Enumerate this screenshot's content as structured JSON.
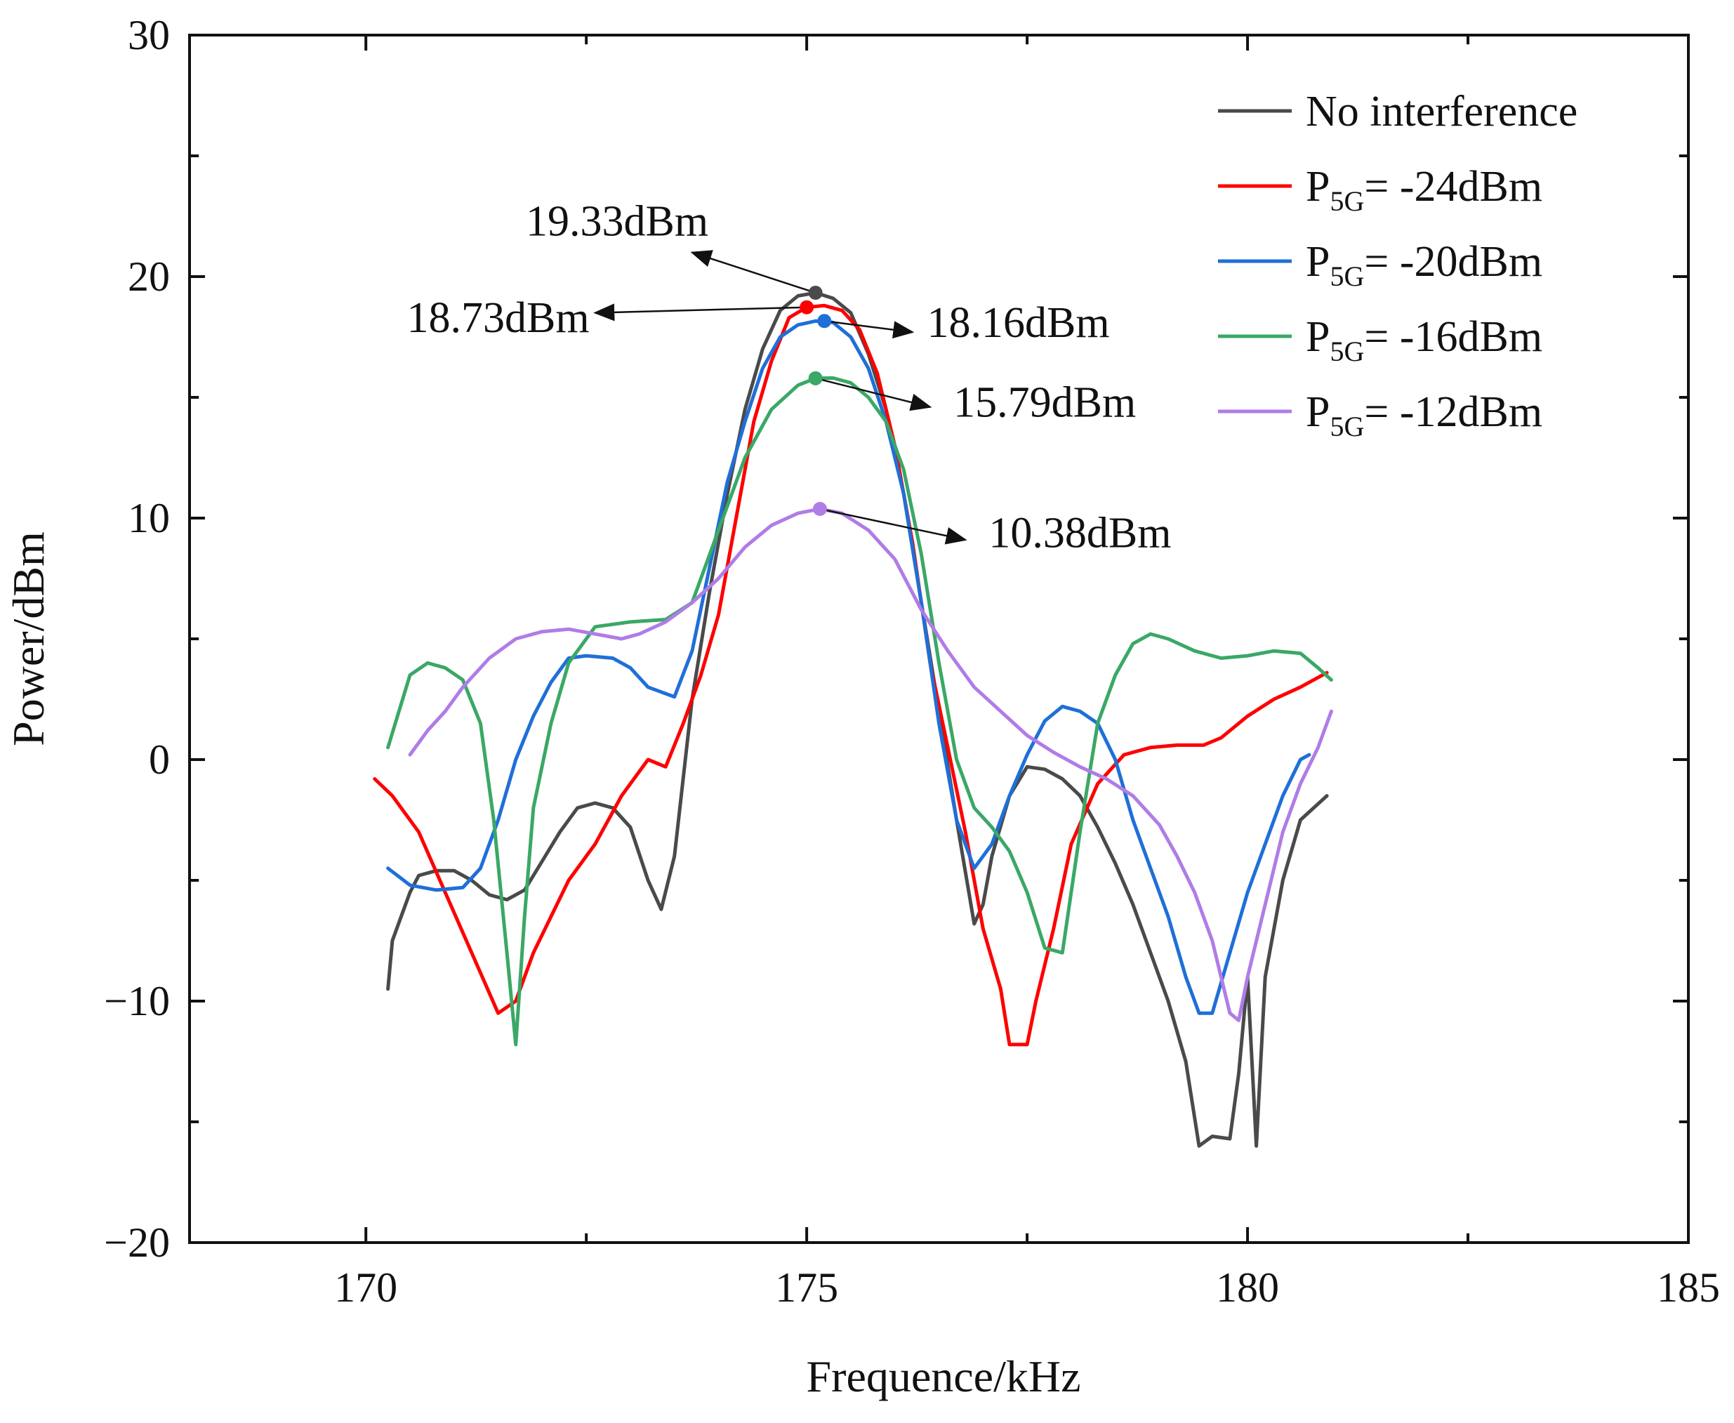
{
  "chart_data": {
    "type": "line",
    "xlabel": "Frequence/kHz",
    "ylabel": "Power/dBm",
    "xlim": [
      168,
      185
    ],
    "ylim": [
      -20,
      30
    ],
    "xticks": [
      170,
      175,
      180,
      185
    ],
    "yticks": [
      -20,
      -10,
      0,
      10,
      20,
      30
    ],
    "xtick_labels": [
      "170",
      "175",
      "180",
      "185"
    ],
    "ytick_labels": [
      "−20",
      "−10",
      "0",
      "10",
      "20",
      "30"
    ],
    "grid": false,
    "legend_position": "top-right",
    "series": [
      {
        "name": "No interference",
        "legend_main": "No interference",
        "legend_sub": "",
        "legend_tail": "",
        "color": "#4a4a4a",
        "x": [
          170.25,
          170.3,
          170.4,
          170.5,
          170.6,
          170.8,
          171.0,
          171.2,
          171.4,
          171.6,
          171.8,
          172.0,
          172.2,
          172.4,
          172.6,
          172.8,
          173.0,
          173.2,
          173.35,
          173.5,
          173.7,
          173.9,
          174.1,
          174.3,
          174.5,
          174.7,
          174.9,
          175.1,
          175.3,
          175.5,
          175.7,
          175.9,
          176.1,
          176.3,
          176.5,
          176.7,
          176.9,
          177.0,
          177.1,
          177.3,
          177.5,
          177.7,
          177.9,
          178.1,
          178.3,
          178.5,
          178.7,
          178.9,
          179.1,
          179.3,
          179.45,
          179.6,
          179.8,
          179.9,
          180.0,
          180.1,
          180.2,
          180.4,
          180.6,
          180.9
        ],
        "y": [
          -9.5,
          -7.5,
          -6.5,
          -5.5,
          -4.8,
          -4.6,
          -4.6,
          -5.0,
          -5.6,
          -5.8,
          -5.4,
          -4.2,
          -3.0,
          -2.0,
          -1.8,
          -2.0,
          -2.8,
          -5.0,
          -6.2,
          -4.0,
          2.5,
          7.0,
          11.0,
          14.5,
          17.0,
          18.6,
          19.2,
          19.33,
          19.1,
          18.5,
          16.8,
          14.5,
          11.0,
          6.5,
          2.0,
          -2.5,
          -6.8,
          -6.0,
          -4.0,
          -1.5,
          -0.3,
          -0.4,
          -0.8,
          -1.5,
          -2.8,
          -4.3,
          -6.0,
          -8.0,
          -10.0,
          -12.5,
          -16.0,
          -15.6,
          -15.7,
          -13.0,
          -9.0,
          -16.0,
          -9.0,
          -5.0,
          -2.5,
          -1.5
        ]
      },
      {
        "name": "P5G= -24dBm",
        "legend_main": "P",
        "legend_sub": "5G",
        "legend_tail": "= -24dBm",
        "color": "#ff0000",
        "x": [
          170.1,
          170.3,
          170.6,
          170.9,
          171.2,
          171.5,
          171.7,
          171.9,
          172.1,
          172.3,
          172.6,
          172.9,
          173.2,
          173.4,
          173.6,
          173.8,
          174.0,
          174.2,
          174.4,
          174.6,
          174.8,
          175.0,
          175.2,
          175.4,
          175.6,
          175.8,
          176.0,
          176.2,
          176.4,
          176.6,
          176.8,
          177.0,
          177.2,
          177.3,
          177.5,
          177.6,
          177.8,
          178.0,
          178.3,
          178.6,
          178.9,
          179.2,
          179.5,
          179.7,
          180.0,
          180.3,
          180.6,
          180.9
        ],
        "y": [
          -0.8,
          -1.5,
          -3.0,
          -5.5,
          -8.0,
          -10.5,
          -10.0,
          -8.0,
          -6.5,
          -5.0,
          -3.5,
          -1.5,
          0.0,
          -0.3,
          1.5,
          3.5,
          6.0,
          10.0,
          14.0,
          16.5,
          18.3,
          18.73,
          18.8,
          18.6,
          17.8,
          16.0,
          13.0,
          9.0,
          4.0,
          0.5,
          -3.0,
          -7.0,
          -9.5,
          -11.8,
          -11.8,
          -10.0,
          -7.0,
          -3.5,
          -1.0,
          0.2,
          0.5,
          0.6,
          0.6,
          0.9,
          1.8,
          2.5,
          3.0,
          3.6
        ]
      },
      {
        "name": "P5G= -20dBm",
        "legend_main": "P",
        "legend_sub": "5G",
        "legend_tail": "= -20dBm",
        "color": "#1f6fd8",
        "x": [
          170.25,
          170.5,
          170.8,
          171.1,
          171.3,
          171.5,
          171.7,
          171.9,
          172.1,
          172.3,
          172.5,
          172.8,
          173.0,
          173.2,
          173.5,
          173.7,
          173.9,
          174.1,
          174.3,
          174.5,
          174.7,
          174.9,
          175.1,
          175.3,
          175.5,
          175.7,
          175.9,
          176.1,
          176.3,
          176.5,
          176.7,
          176.9,
          177.1,
          177.3,
          177.5,
          177.7,
          177.9,
          178.1,
          178.3,
          178.5,
          178.7,
          178.9,
          179.1,
          179.3,
          179.45,
          179.6,
          179.8,
          180.0,
          180.2,
          180.4,
          180.6,
          180.7
        ],
        "y": [
          -4.5,
          -5.2,
          -5.4,
          -5.3,
          -4.5,
          -2.5,
          0.0,
          1.8,
          3.2,
          4.2,
          4.3,
          4.2,
          3.8,
          3.0,
          2.6,
          4.5,
          8.0,
          11.5,
          14.0,
          16.2,
          17.5,
          18.0,
          18.16,
          18.1,
          17.5,
          16.2,
          14.0,
          11.0,
          6.5,
          1.5,
          -2.5,
          -4.5,
          -3.5,
          -1.5,
          0.2,
          1.6,
          2.2,
          2.0,
          1.5,
          0.0,
          -2.5,
          -4.5,
          -6.5,
          -9.0,
          -10.5,
          -10.5,
          -8.0,
          -5.5,
          -3.5,
          -1.5,
          0.0,
          0.2
        ]
      },
      {
        "name": "P5G= -16dBm",
        "legend_main": "P",
        "legend_sub": "5G",
        "legend_tail": "= -16dBm",
        "color": "#3aa866",
        "x": [
          170.25,
          170.5,
          170.7,
          170.9,
          171.1,
          171.3,
          171.45,
          171.6,
          171.7,
          171.8,
          171.9,
          172.1,
          172.3,
          172.6,
          173.0,
          173.4,
          173.7,
          174.0,
          174.3,
          174.6,
          174.9,
          175.1,
          175.3,
          175.5,
          175.7,
          175.9,
          176.1,
          176.3,
          176.5,
          176.7,
          176.9,
          177.1,
          177.3,
          177.5,
          177.7,
          177.9,
          178.1,
          178.3,
          178.5,
          178.7,
          178.9,
          179.1,
          179.4,
          179.7,
          180.0,
          180.3,
          180.6,
          180.8,
          180.95
        ],
        "y": [
          0.5,
          3.5,
          4.0,
          3.8,
          3.3,
          1.5,
          -2.5,
          -8.0,
          -11.8,
          -6.5,
          -2.0,
          1.5,
          4.0,
          5.5,
          5.7,
          5.8,
          6.5,
          9.5,
          12.5,
          14.5,
          15.5,
          15.79,
          15.8,
          15.6,
          15.0,
          14.0,
          12.0,
          8.5,
          4.0,
          0.0,
          -2.0,
          -2.8,
          -3.8,
          -5.5,
          -7.8,
          -8.0,
          -3.0,
          1.5,
          3.5,
          4.8,
          5.2,
          5.0,
          4.5,
          4.2,
          4.3,
          4.5,
          4.4,
          3.8,
          3.3
        ]
      },
      {
        "name": "P5G= -12dBm",
        "legend_main": "P",
        "legend_sub": "5G",
        "legend_tail": "= -12dBm",
        "color": "#b07ce6",
        "x": [
          170.5,
          170.7,
          170.9,
          171.1,
          171.4,
          171.7,
          172.0,
          172.3,
          172.6,
          172.9,
          173.1,
          173.4,
          173.7,
          174.0,
          174.3,
          174.6,
          174.9,
          175.15,
          175.4,
          175.7,
          176.0,
          176.3,
          176.6,
          176.9,
          177.2,
          177.5,
          177.8,
          178.1,
          178.4,
          178.7,
          179.0,
          179.2,
          179.4,
          179.6,
          179.8,
          179.9,
          180.0,
          180.2,
          180.4,
          180.6,
          180.8,
          180.95
        ],
        "y": [
          0.2,
          1.2,
          2.0,
          3.0,
          4.2,
          5.0,
          5.3,
          5.4,
          5.2,
          5.0,
          5.2,
          5.7,
          6.5,
          7.5,
          8.8,
          9.7,
          10.2,
          10.38,
          10.2,
          9.5,
          8.3,
          6.2,
          4.5,
          3.0,
          2.0,
          1.0,
          0.3,
          -0.3,
          -0.8,
          -1.5,
          -2.7,
          -4.0,
          -5.5,
          -7.5,
          -10.5,
          -10.8,
          -9.0,
          -6.0,
          -3.0,
          -1.0,
          0.5,
          2.0
        ]
      }
    ],
    "annotations": [
      {
        "text": "19.33dBm",
        "x": 175.1,
        "y": 19.33,
        "color": "#4a4a4a",
        "arrow_to": [
          173.7,
          21.0
        ],
        "text_at": [
          172.85,
          21.7
        ],
        "anchor": "middle"
      },
      {
        "text": "18.73dBm",
        "x": 175.0,
        "y": 18.73,
        "color": "#ff0000",
        "arrow_to": [
          172.6,
          18.5
        ],
        "text_at": [
          171.5,
          17.7
        ],
        "anchor": "middle"
      },
      {
        "text": "18.16dBm",
        "x": 175.2,
        "y": 18.16,
        "color": "#1f6fd8",
        "arrow_to": [
          176.2,
          17.7
        ],
        "text_at": [
          177.4,
          17.5
        ],
        "anchor": "middle"
      },
      {
        "text": "15.79dBm",
        "x": 175.1,
        "y": 15.79,
        "color": "#3aa866",
        "arrow_to": [
          176.4,
          14.6
        ],
        "text_at": [
          177.7,
          14.2
        ],
        "anchor": "middle"
      },
      {
        "text": "10.38dBm",
        "x": 175.15,
        "y": 10.38,
        "color": "#b07ce6",
        "arrow_to": [
          176.8,
          9.1
        ],
        "text_at": [
          178.1,
          8.8
        ],
        "anchor": "middle"
      }
    ]
  }
}
